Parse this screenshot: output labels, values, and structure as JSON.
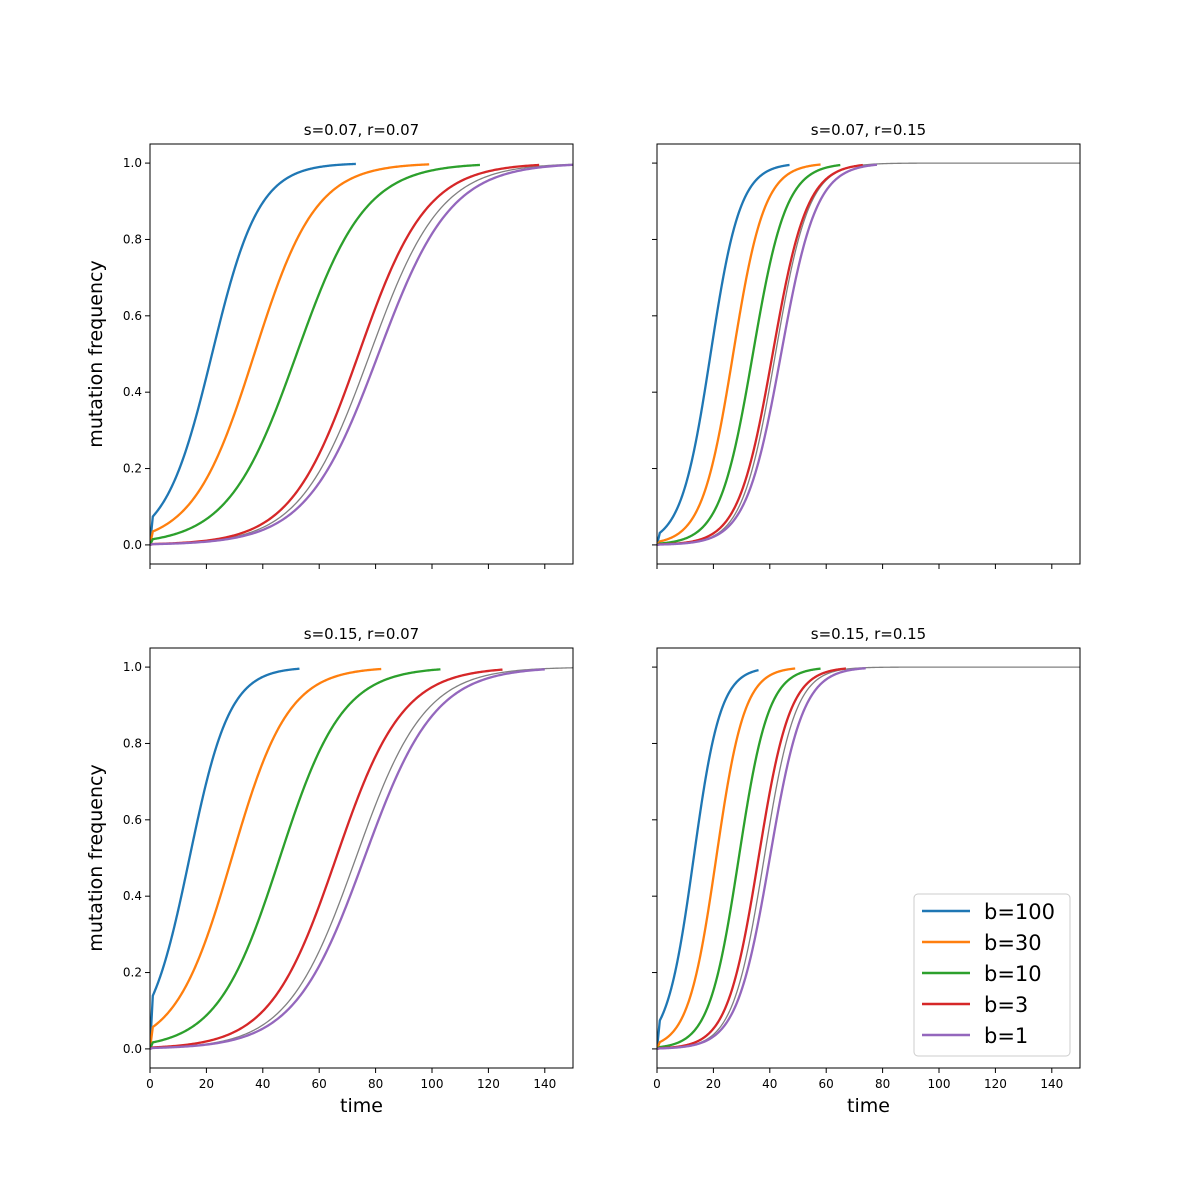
{
  "figure": {
    "xlabel": "time",
    "ylabel": "mutation frequency",
    "xlim": [
      0,
      150
    ],
    "ylim": [
      -0.05,
      1.05
    ],
    "xticks": [
      0,
      20,
      40,
      60,
      80,
      100,
      120,
      140
    ],
    "yticks": [
      0.0,
      0.2,
      0.4,
      0.6,
      0.8,
      1.0
    ],
    "xtick_labels": [
      "0",
      "20",
      "40",
      "60",
      "80",
      "100",
      "120",
      "140"
    ],
    "ytick_labels": [
      "0.0",
      "0.2",
      "0.4",
      "0.6",
      "0.8",
      "1.0"
    ],
    "legend": {
      "placement": "lower-right of bottom-right panel",
      "entries": [
        {
          "label": "b=100",
          "color": "#1f77b4"
        },
        {
          "label": "b=30",
          "color": "#ff7f0e"
        },
        {
          "label": "b=10",
          "color": "#2ca02c"
        },
        {
          "label": "b=3",
          "color": "#d62728"
        },
        {
          "label": "b=1",
          "color": "#9467bd"
        }
      ]
    },
    "reference_curve_color": "#808080"
  },
  "chart_data": [
    {
      "type": "line",
      "title": "s=0.07, r=0.07",
      "xlabel": "",
      "ylabel": "mutation frequency",
      "xlim": [
        0,
        150
      ],
      "ylim": [
        -0.05,
        1.05
      ],
      "grid": false,
      "series": [
        {
          "name": "b=100",
          "color": "#1f77b4",
          "midpoint": 22,
          "rate": 0.12,
          "end": 73
        },
        {
          "name": "b=30",
          "color": "#ff7f0e",
          "midpoint": 37,
          "rate": 0.092,
          "end": 99
        },
        {
          "name": "b=10",
          "color": "#2ca02c",
          "midpoint": 52,
          "rate": 0.082,
          "end": 117
        },
        {
          "name": "b=3",
          "color": "#d62728",
          "midpoint": 74,
          "rate": 0.083,
          "end": 138
        },
        {
          "name": "b=1",
          "color": "#9467bd",
          "midpoint": 81,
          "rate": 0.078,
          "end": 150
        }
      ],
      "reference": {
        "color": "#808080",
        "midpoint": 78,
        "rate": 0.08,
        "end": 150
      }
    },
    {
      "type": "line",
      "title": "s=0.07, r=0.15",
      "xlabel": "",
      "ylabel": "",
      "xlim": [
        0,
        150
      ],
      "ylim": [
        -0.05,
        1.05
      ],
      "grid": false,
      "series": [
        {
          "name": "b=100",
          "color": "#1f77b4",
          "midpoint": 19,
          "rate": 0.19,
          "end": 47
        },
        {
          "name": "b=30",
          "color": "#ff7f0e",
          "midpoint": 27,
          "rate": 0.18,
          "end": 58
        },
        {
          "name": "b=10",
          "color": "#2ca02c",
          "midpoint": 34,
          "rate": 0.17,
          "end": 65
        },
        {
          "name": "b=3",
          "color": "#d62728",
          "midpoint": 41,
          "rate": 0.165,
          "end": 73
        },
        {
          "name": "b=1",
          "color": "#9467bd",
          "midpoint": 44,
          "rate": 0.16,
          "end": 78
        }
      ],
      "reference": {
        "color": "#808080",
        "midpoint": 42,
        "rate": 0.17,
        "end": 150
      }
    },
    {
      "type": "line",
      "title": "s=0.15, r=0.07",
      "xlabel": "time",
      "ylabel": "mutation frequency",
      "xlim": [
        0,
        150
      ],
      "ylim": [
        -0.05,
        1.05
      ],
      "grid": false,
      "series": [
        {
          "name": "b=100",
          "color": "#1f77b4",
          "midpoint": 14,
          "rate": 0.14,
          "end": 53
        },
        {
          "name": "b=30",
          "color": "#ff7f0e",
          "midpoint": 29,
          "rate": 0.1,
          "end": 82
        },
        {
          "name": "b=10",
          "color": "#2ca02c",
          "midpoint": 46,
          "rate": 0.09,
          "end": 103
        },
        {
          "name": "b=3",
          "color": "#d62728",
          "midpoint": 66,
          "rate": 0.085,
          "end": 125
        },
        {
          "name": "b=1",
          "color": "#9467bd",
          "midpoint": 76,
          "rate": 0.08,
          "end": 140
        }
      ],
      "reference": {
        "color": "#808080",
        "midpoint": 73,
        "rate": 0.082,
        "end": 150
      }
    },
    {
      "type": "line",
      "title": "s=0.15, r=0.15",
      "xlabel": "time",
      "ylabel": "",
      "xlim": [
        0,
        150
      ],
      "ylim": [
        -0.05,
        1.05
      ],
      "grid": false,
      "series": [
        {
          "name": "b=100",
          "color": "#1f77b4",
          "midpoint": 13,
          "rate": 0.21,
          "end": 36
        },
        {
          "name": "b=30",
          "color": "#ff7f0e",
          "midpoint": 21,
          "rate": 0.2,
          "end": 49
        },
        {
          "name": "b=10",
          "color": "#2ca02c",
          "midpoint": 29,
          "rate": 0.19,
          "end": 58
        },
        {
          "name": "b=3",
          "color": "#d62728",
          "midpoint": 36,
          "rate": 0.18,
          "end": 67
        },
        {
          "name": "b=1",
          "color": "#9467bd",
          "midpoint": 40,
          "rate": 0.17,
          "end": 74
        }
      ],
      "reference": {
        "color": "#808080",
        "midpoint": 38,
        "rate": 0.18,
        "end": 150
      }
    }
  ]
}
